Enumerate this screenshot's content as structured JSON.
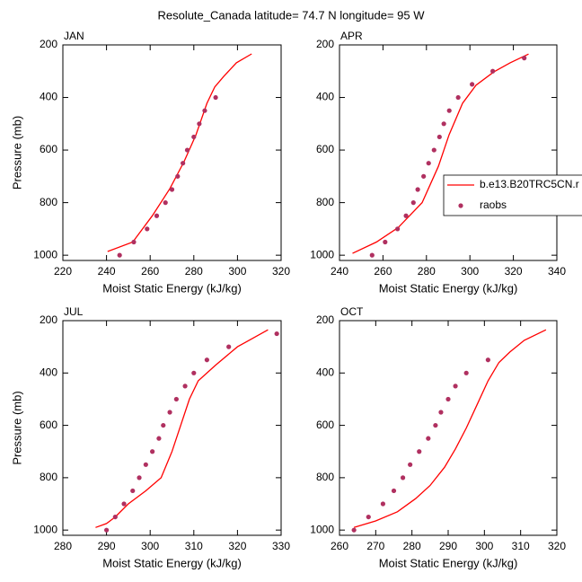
{
  "title": "Resolute_Canada  latitude= 74.7 N longitude= 95 W",
  "chart_data": [
    {
      "type": "line",
      "title": "JAN",
      "xlabel": "Moist Static Energy (kJ/kg)",
      "ylabel": "Pressure (mb)",
      "xlim": [
        220,
        320
      ],
      "xticks": [
        220,
        240,
        260,
        280,
        300,
        320
      ],
      "ylim": [
        1020,
        200
      ],
      "yticks": [
        200,
        400,
        600,
        800,
        1000
      ],
      "series": [
        {
          "mode": "line",
          "color": "#ff0000",
          "x": [
            240.5,
            252,
            261,
            269,
            275.5,
            281,
            286,
            289.6,
            293.7,
            299.5,
            306.5
          ],
          "values": [
            986,
            950,
            850,
            747,
            644,
            542,
            422,
            360,
            320,
            268,
            234
          ]
        },
        {
          "mode": "markers",
          "color": "#b03060",
          "x": [
            246,
            252.5,
            258.6,
            263,
            267,
            270,
            272.6,
            275,
            277,
            280,
            282.5,
            285,
            290
          ],
          "values": [
            1000,
            950,
            900,
            850,
            800,
            750,
            700,
            650,
            600,
            550,
            500,
            450,
            400
          ]
        }
      ]
    },
    {
      "type": "line",
      "title": "APR",
      "xlabel": "Moist Static Energy (kJ/kg)",
      "xlim": [
        240,
        340
      ],
      "xticks": [
        240,
        260,
        280,
        300,
        320,
        340
      ],
      "ylim": [
        1020,
        200
      ],
      "yticks": [
        200,
        400,
        600,
        800,
        1000
      ],
      "legend": "right",
      "series": [
        {
          "name": "b.e13.B20TRC5CN.r",
          "mode": "line",
          "color": "#ff0000",
          "x": [
            246,
            257,
            267,
            278,
            285.5,
            290.4,
            296.6,
            302.8,
            311,
            318.5,
            327
          ],
          "values": [
            993,
            950,
            895,
            800,
            662,
            542,
            422,
            353,
            303,
            268,
            235
          ]
        },
        {
          "name": "raobs",
          "mode": "markers",
          "color": "#b03060",
          "x": [
            255,
            261,
            266.7,
            270.6,
            274,
            276,
            278.7,
            281,
            283.5,
            286,
            288,
            290.5,
            294.6,
            301,
            310.5,
            325
          ],
          "values": [
            1000,
            950,
            900,
            850,
            800,
            750,
            700,
            650,
            600,
            550,
            500,
            450,
            400,
            350,
            300,
            250
          ]
        }
      ]
    },
    {
      "type": "line",
      "title": "JUL",
      "xlabel": "Moist Static Energy (kJ/kg)",
      "ylabel": "Pressure (mb)",
      "xlim": [
        280,
        330
      ],
      "xticks": [
        280,
        290,
        300,
        310,
        320,
        330
      ],
      "ylim": [
        1020,
        200
      ],
      "yticks": [
        200,
        400,
        600,
        800,
        1000
      ],
      "series": [
        {
          "mode": "line",
          "color": "#ff0000",
          "x": [
            287.5,
            290,
            292,
            295,
            299,
            302.5,
            305,
            307,
            309,
            311,
            315,
            320,
            327
          ],
          "values": [
            990,
            975,
            950,
            900,
            850,
            800,
            700,
            600,
            500,
            430,
            370,
            300,
            235
          ]
        },
        {
          "mode": "markers",
          "color": "#b03060",
          "x": [
            290,
            292,
            294,
            296,
            297.5,
            299,
            300.5,
            302,
            303,
            304.5,
            306,
            308,
            310,
            313,
            318,
            329
          ],
          "values": [
            1000,
            950,
            900,
            850,
            800,
            750,
            700,
            650,
            600,
            550,
            500,
            450,
            400,
            350,
            300,
            250
          ]
        }
      ]
    },
    {
      "type": "line",
      "title": "OCT",
      "xlabel": "Moist Static Energy (kJ/kg)",
      "xlim": [
        260,
        320
      ],
      "xticks": [
        260,
        270,
        280,
        290,
        300,
        310,
        320
      ],
      "ylim": [
        1020,
        200
      ],
      "yticks": [
        200,
        400,
        600,
        800,
        1000
      ],
      "series": [
        {
          "mode": "line",
          "color": "#ff0000",
          "x": [
            264,
            270,
            276,
            281,
            285,
            289,
            292,
            295,
            298,
            301,
            304,
            307,
            311,
            317
          ],
          "values": [
            990,
            965,
            930,
            880,
            830,
            760,
            690,
            610,
            520,
            430,
            360,
            320,
            275,
            235
          ]
        },
        {
          "mode": "markers",
          "color": "#b03060",
          "x": [
            264,
            268,
            272,
            275,
            277.5,
            279.5,
            282,
            284.5,
            286.5,
            288,
            290,
            292,
            295,
            301
          ],
          "values": [
            1000,
            950,
            900,
            850,
            800,
            750,
            700,
            650,
            600,
            550,
            500,
            450,
            400,
            350
          ]
        }
      ]
    }
  ]
}
